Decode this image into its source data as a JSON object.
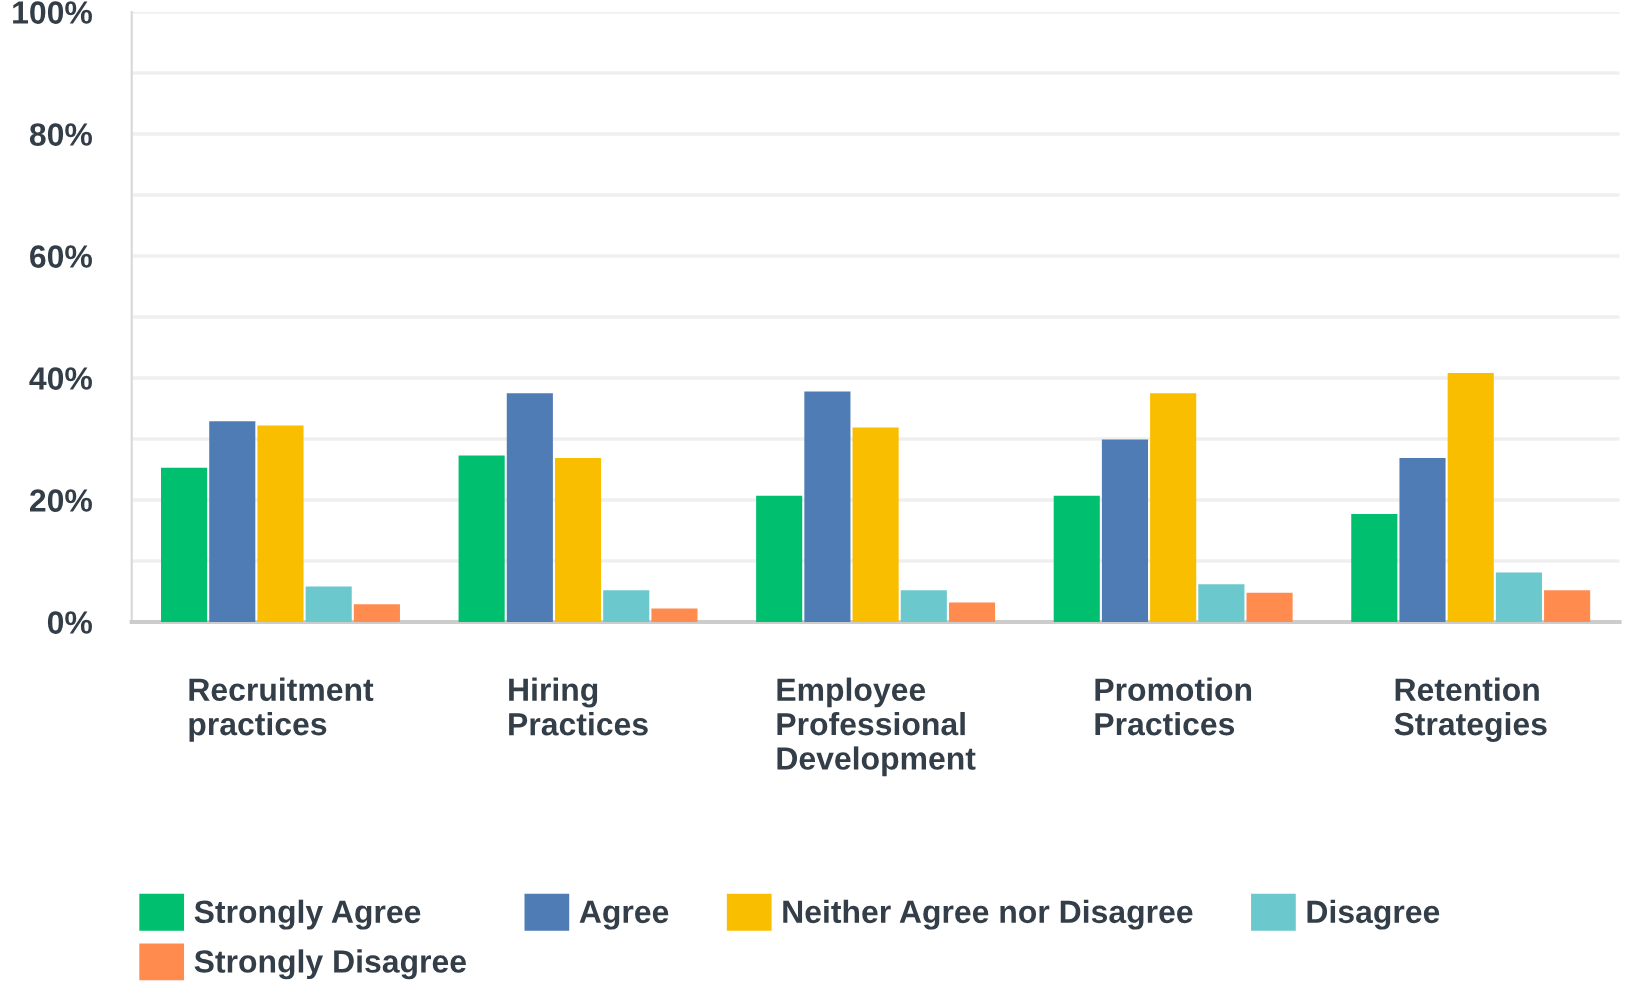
{
  "chart_data": {
    "type": "bar",
    "categories": [
      "Recruitment\npractices",
      "Hiring\nPractices",
      "Employee\nProfessional\nDevelopment",
      "Promotion\nPractices",
      "Retention\nStrategies"
    ],
    "series": [
      {
        "name": "Strongly Agree",
        "color": "#00bf6f",
        "values": [
          25.3,
          27.3,
          20.7,
          20.7,
          17.7
        ]
      },
      {
        "name": "Agree",
        "color": "#507cb6",
        "values": [
          32.9,
          37.5,
          37.8,
          29.9,
          26.9
        ]
      },
      {
        "name": "Neither Agree nor Disagree",
        "color": "#f9be00",
        "values": [
          32.2,
          26.9,
          31.9,
          37.5,
          40.8
        ]
      },
      {
        "name": "Disagree",
        "color": "#6bc8cd",
        "values": [
          5.8,
          5.2,
          5.2,
          6.2,
          8.1
        ]
      },
      {
        "name": "Strongly Disagree",
        "color": "#ff8b4f",
        "values": [
          2.9,
          2.2,
          3.2,
          4.8,
          5.2
        ]
      }
    ],
    "ylim": [
      0,
      100
    ],
    "yticks": [
      {
        "value": 0,
        "label": "0%"
      },
      {
        "value": 10,
        "label": null
      },
      {
        "value": 20,
        "label": "20%"
      },
      {
        "value": 30,
        "label": null
      },
      {
        "value": 40,
        "label": "40%"
      },
      {
        "value": 50,
        "label": null
      },
      {
        "value": 60,
        "label": "60%"
      },
      {
        "value": 70,
        "label": null
      },
      {
        "value": 80,
        "label": "80%"
      },
      {
        "value": 90,
        "label": null
      },
      {
        "value": 100,
        "label": "100%"
      }
    ],
    "grid": "y",
    "legend": "bottom"
  }
}
